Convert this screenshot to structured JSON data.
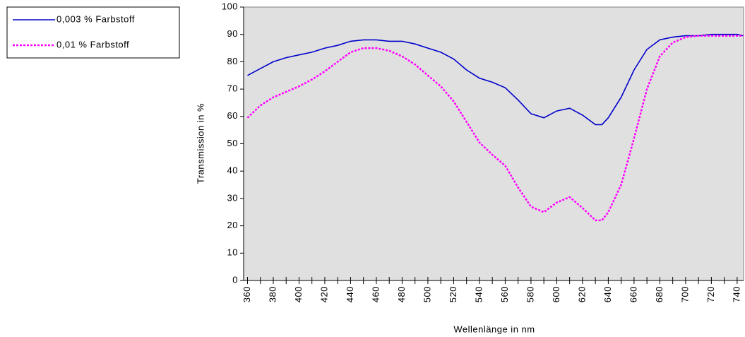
{
  "chart_data": {
    "type": "line",
    "x_label": "Wellenlänge in nm",
    "y_label": "Transmission in %",
    "x": [
      360,
      370,
      380,
      390,
      400,
      410,
      420,
      430,
      440,
      450,
      460,
      470,
      480,
      490,
      500,
      510,
      520,
      530,
      540,
      550,
      560,
      570,
      580,
      590,
      600,
      610,
      620,
      630,
      635,
      640,
      650,
      660,
      670,
      680,
      690,
      700,
      710,
      720,
      730,
      740,
      745
    ],
    "series": [
      {
        "name": "0,003 % Farbstoff",
        "color": "#0000cc",
        "dash": false,
        "values": [
          75,
          77.5,
          80,
          81.5,
          82.5,
          83.5,
          85,
          86,
          87.5,
          88,
          88,
          87.5,
          87.5,
          86.5,
          85,
          83.5,
          81,
          77,
          74,
          72.5,
          70.5,
          66,
          61,
          59.5,
          62,
          63,
          60.5,
          57,
          57,
          59.5,
          67,
          77,
          84.5,
          88,
          89,
          89.5,
          89.5,
          90,
          90,
          90,
          89.5
        ]
      },
      {
        "name": "0,01 % Farbstoff",
        "color": "#ff00ff",
        "dash": true,
        "values": [
          59.5,
          64,
          67,
          69,
          71,
          73.5,
          76.5,
          80,
          83.5,
          85,
          85,
          84,
          82,
          79,
          75,
          71,
          65.5,
          58,
          50.5,
          46,
          42,
          34,
          27,
          25,
          28.5,
          30.5,
          26.5,
          22,
          22,
          25,
          35,
          52,
          70,
          82,
          87,
          89,
          89.5,
          89.5,
          89.5,
          89.5,
          89.5
        ]
      }
    ],
    "xlim": [
      357,
      745
    ],
    "ylim": [
      0,
      100
    ],
    "xticks": [
      360,
      380,
      400,
      420,
      440,
      460,
      480,
      500,
      520,
      540,
      560,
      580,
      600,
      620,
      640,
      660,
      680,
      700,
      720,
      740
    ],
    "yticks": [
      0,
      10,
      20,
      30,
      40,
      50,
      60,
      70,
      80,
      90,
      100
    ],
    "legend": "top-left",
    "plot_background": "#e0e0e0"
  }
}
